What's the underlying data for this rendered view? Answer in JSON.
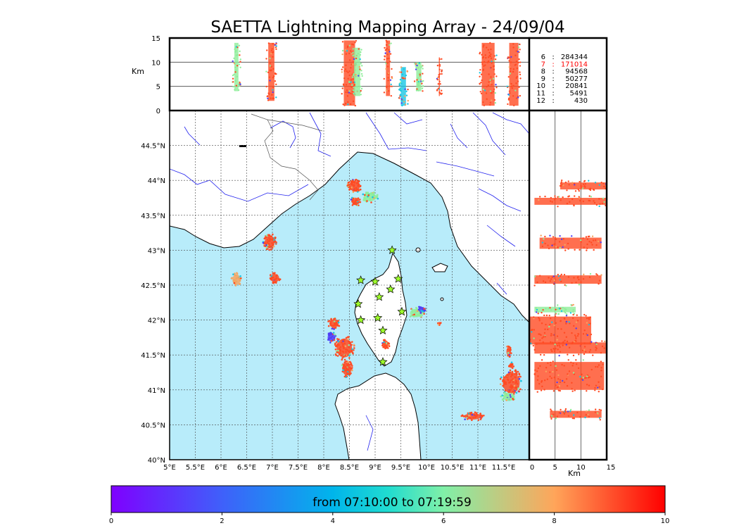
{
  "chart_data": {
    "type": "scatter",
    "title": "SAETTA Lightning Mapping Array - 24/09/04",
    "colorbar": {
      "label": "from 07:10:00 to 07:19:59",
      "ticks": [
        "0",
        "2",
        "4",
        "6",
        "8",
        "10"
      ],
      "range": [
        0,
        10
      ],
      "colormap": "rainbow"
    },
    "map": {
      "lon_range": [
        5.0,
        12.0
      ],
      "lat_range": [
        40.0,
        45.0
      ],
      "lon_ticks": [
        "5°E",
        "5.5°E",
        "6°E",
        "6.5°E",
        "7°E",
        "7.5°E",
        "8°E",
        "8.5°E",
        "9°E",
        "9.5°E",
        "10°E",
        "10.5°E",
        "11°E",
        "11.5°E"
      ],
      "lat_ticks": [
        "40°N",
        "40.5°N",
        "41°N",
        "41.5°N",
        "42°N",
        "42.5°N",
        "43°N",
        "43.5°N",
        "44°N",
        "44.5°N"
      ],
      "sea_color": "#b8ecfa",
      "stations_lonlat": [
        [
          9.33,
          43.0
        ],
        [
          8.72,
          42.57
        ],
        [
          9.0,
          42.55
        ],
        [
          9.45,
          42.59
        ],
        [
          9.3,
          42.44
        ],
        [
          9.08,
          42.33
        ],
        [
          8.67,
          42.23
        ],
        [
          8.72,
          42.0
        ],
        [
          9.05,
          42.03
        ],
        [
          9.52,
          42.12
        ],
        [
          9.15,
          41.85
        ],
        [
          9.15,
          41.4
        ]
      ],
      "clusters_lonlat": [
        {
          "lon": 8.6,
          "lat": 43.92,
          "dlon": 0.14,
          "dlat": 0.1,
          "n": 60,
          "color": "#ff4b23"
        },
        {
          "lon": 8.9,
          "lat": 43.76,
          "dlon": 0.16,
          "dlat": 0.08,
          "n": 40,
          "color": "#8fee9a"
        },
        {
          "lon": 8.62,
          "lat": 43.7,
          "dlon": 0.1,
          "dlat": 0.07,
          "n": 30,
          "color": "#ff4b23"
        },
        {
          "lon": 6.95,
          "lat": 43.12,
          "dlon": 0.13,
          "dlat": 0.12,
          "n": 60,
          "color": "#ff4b23"
        },
        {
          "lon": 6.3,
          "lat": 42.58,
          "dlon": 0.1,
          "dlat": 0.1,
          "n": 30,
          "color": "#f5a560"
        },
        {
          "lon": 7.05,
          "lat": 42.6,
          "dlon": 0.11,
          "dlat": 0.08,
          "n": 30,
          "color": "#ff4b23"
        },
        {
          "lon": 8.2,
          "lat": 41.95,
          "dlon": 0.12,
          "dlat": 0.08,
          "n": 30,
          "color": "#ff4b23"
        },
        {
          "lon": 8.4,
          "lat": 41.6,
          "dlon": 0.2,
          "dlat": 0.18,
          "n": 90,
          "color": "#ff4b23"
        },
        {
          "lon": 8.45,
          "lat": 41.3,
          "dlon": 0.12,
          "dlat": 0.12,
          "n": 60,
          "color": "#ff4b23"
        },
        {
          "lon": 8.15,
          "lat": 41.75,
          "dlon": 0.1,
          "dlat": 0.08,
          "n": 25,
          "color": "#4f3ff6"
        },
        {
          "lon": 9.8,
          "lat": 42.1,
          "dlon": 0.16,
          "dlat": 0.08,
          "n": 40,
          "color": "#8fee9a"
        },
        {
          "lon": 9.9,
          "lat": 42.15,
          "dlon": 0.08,
          "dlat": 0.05,
          "n": 20,
          "color": "#4f3ff6"
        },
        {
          "lon": 9.2,
          "lat": 41.65,
          "dlon": 0.08,
          "dlat": 0.08,
          "n": 25,
          "color": "#ff4b23"
        },
        {
          "lon": 11.65,
          "lat": 41.1,
          "dlon": 0.22,
          "dlat": 0.2,
          "n": 90,
          "color": "#ff4b23"
        },
        {
          "lon": 11.6,
          "lat": 40.9,
          "dlon": 0.15,
          "dlat": 0.08,
          "n": 30,
          "color": "#8fee9a"
        },
        {
          "lon": 11.6,
          "lat": 41.55,
          "dlon": 0.06,
          "dlat": 0.08,
          "n": 15,
          "color": "#ff4b23"
        },
        {
          "lon": 11.65,
          "lat": 41.35,
          "dlon": 0.05,
          "dlat": 0.05,
          "n": 12,
          "color": "#ff4b23"
        },
        {
          "lon": 10.9,
          "lat": 40.62,
          "dlon": 0.22,
          "dlat": 0.06,
          "n": 45,
          "color": "#ff4b23"
        },
        {
          "lon": 10.25,
          "lat": 41.95,
          "dlon": 0.03,
          "dlat": 0.03,
          "n": 6,
          "color": "#ff4b23"
        }
      ]
    },
    "alt_lon_panel": {
      "y_label": "Km",
      "y_ticks": [
        "0",
        "5",
        "10",
        "15"
      ],
      "y_range": [
        0,
        15
      ]
    },
    "alt_lat_panel": {
      "x_label": "Km",
      "x_ticks": [
        "0",
        "5",
        "10",
        "15"
      ],
      "x_range": [
        0,
        15
      ]
    },
    "station_counts": [
      {
        "stations": "6",
        "count": "284344",
        "color": "#000000"
      },
      {
        "stations": "7",
        "count": "171014",
        "color": "#ff0000"
      },
      {
        "stations": "8",
        "count": "94568",
        "color": "#000000"
      },
      {
        "stations": "9",
        "count": "50277",
        "color": "#000000"
      },
      {
        "stations": "10",
        "count": "20841",
        "color": "#000000"
      },
      {
        "stations": "11",
        "count": "5491",
        "color": "#000000"
      },
      {
        "stations": "12",
        "count": "430",
        "color": "#000000"
      }
    ],
    "lon_alt_columns": [
      {
        "lon": 6.3,
        "dlon": 0.08,
        "alt": [
          4,
          14
        ],
        "color": "#8fee9a"
      },
      {
        "lon": 6.98,
        "dlon": 0.12,
        "alt": [
          2,
          14
        ],
        "color": "#ff4b23"
      },
      {
        "lon": 8.5,
        "dlon": 0.22,
        "alt": [
          1,
          14.5
        ],
        "color": "#ff4b23"
      },
      {
        "lon": 8.65,
        "dlon": 0.12,
        "alt": [
          3,
          13
        ],
        "color": "#8fee9a"
      },
      {
        "lon": 9.25,
        "dlon": 0.08,
        "alt": [
          3,
          14.5
        ],
        "color": "#ff4b23"
      },
      {
        "lon": 9.55,
        "dlon": 0.1,
        "alt": [
          1,
          9
        ],
        "color": "#19c6e3"
      },
      {
        "lon": 9.85,
        "dlon": 0.1,
        "alt": [
          4,
          10
        ],
        "color": "#8fee9a"
      },
      {
        "lon": 10.25,
        "dlon": 0.02,
        "alt": [
          3,
          11
        ],
        "color": "#ff4b23"
      },
      {
        "lon": 11.2,
        "dlon": 0.25,
        "alt": [
          1,
          14
        ],
        "color": "#ff4b23"
      },
      {
        "lon": 11.7,
        "dlon": 0.18,
        "alt": [
          1,
          14
        ],
        "color": "#ff4b23"
      }
    ],
    "lat_alt_bands": [
      {
        "lat": 43.92,
        "dlat": 0.05,
        "alt": [
          6,
          15
        ],
        "color": "#ff4b23"
      },
      {
        "lat": 43.7,
        "dlat": 0.05,
        "alt": [
          1,
          15
        ],
        "color": "#ff4b23"
      },
      {
        "lat": 43.1,
        "dlat": 0.08,
        "alt": [
          2,
          14
        ],
        "color": "#ff4b23"
      },
      {
        "lat": 42.58,
        "dlat": 0.06,
        "alt": [
          1,
          14
        ],
        "color": "#ff4b23"
      },
      {
        "lat": 42.15,
        "dlat": 0.04,
        "alt": [
          1,
          9
        ],
        "color": "#8fee9a"
      },
      {
        "lat": 41.85,
        "dlat": 0.2,
        "alt": [
          0,
          12
        ],
        "color": "#ff4b23"
      },
      {
        "lat": 41.6,
        "dlat": 0.08,
        "alt": [
          1,
          15
        ],
        "color": "#ff4b23"
      },
      {
        "lat": 41.2,
        "dlat": 0.2,
        "alt": [
          1,
          14.5
        ],
        "color": "#ff4b23"
      },
      {
        "lat": 40.65,
        "dlat": 0.05,
        "alt": [
          4,
          14
        ],
        "color": "#ff4b23"
      }
    ]
  }
}
